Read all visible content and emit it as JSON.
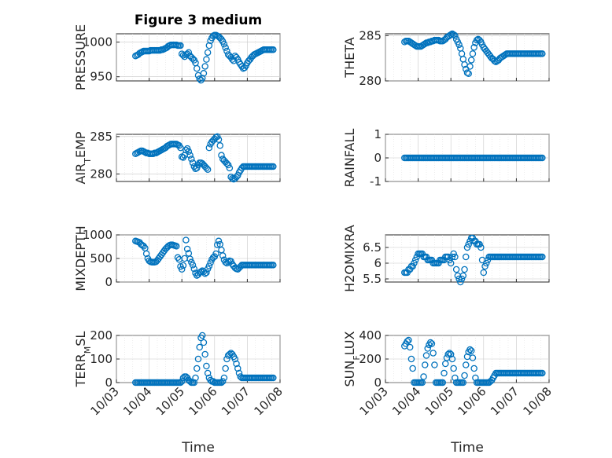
{
  "chart_data": [
    {
      "type": "scatter",
      "title": "Figure 3 medium",
      "ylabel": "PRESSURE",
      "ylim": [
        944,
        1012
      ],
      "yticks": [
        "950",
        "1000"
      ],
      "yticks_values": [
        950,
        1000
      ],
      "x": [
        "10/03 14:00",
        "10/03 15:00",
        "10/03 16:00",
        "10/03 17:00",
        "10/03 18:00",
        "10/03 19:00",
        "10/03 20:00",
        "10/03 21:00",
        "10/03 22:00",
        "10/03 23:00",
        "10/04 00:00",
        "10/04 01:00",
        "10/04 02:00",
        "10/04 03:00",
        "10/04 04:00",
        "10/04 05:00",
        "10/04 06:00",
        "10/04 07:00",
        "10/04 08:00",
        "10/04 09:00",
        "10/04 10:00",
        "10/04 11:00",
        "10/04 12:00",
        "10/04 13:00",
        "10/04 14:00",
        "10/04 15:00",
        "10/04 16:00",
        "10/04 17:00",
        "10/04 18:00",
        "10/04 19:00",
        "10/04 20:00",
        "10/04 21:00",
        "10/04 22:00",
        "10/04 23:00",
        "10/05 00:00",
        "10/05 01:00",
        "10/05 02:00",
        "10/05 03:00",
        "10/05 04:00",
        "10/05 05:00",
        "10/05 06:00",
        "10/05 07:00",
        "10/05 08:00",
        "10/05 09:00",
        "10/05 10:00",
        "10/05 11:00",
        "10/05 12:00",
        "10/05 13:00",
        "10/05 14:00",
        "10/05 15:00",
        "10/05 16:00",
        "10/05 17:00",
        "10/05 18:00",
        "10/05 19:00",
        "10/05 20:00",
        "10/05 21:00",
        "10/05 22:00",
        "10/05 23:00",
        "10/06 00:00",
        "10/06 01:00",
        "10/06 02:00",
        "10/06 03:00",
        "10/06 04:00",
        "10/06 05:00",
        "10/06 06:00",
        "10/06 07:00",
        "10/06 08:00",
        "10/06 09:00",
        "10/06 10:00",
        "10/06 11:00",
        "10/06 12:00",
        "10/06 13:00",
        "10/06 14:00",
        "10/06 15:00",
        "10/06 16:00",
        "10/06 17:00",
        "10/06 18:00",
        "10/06 19:00",
        "10/06 20:00",
        "10/06 21:00",
        "10/06 22:00",
        "10/06 23:00",
        "10/07 00:00",
        "10/07 01:00",
        "10/07 02:00",
        "10/07 03:00",
        "10/07 04:00",
        "10/07 05:00",
        "10/07 06:00",
        "10/07 07:00",
        "10/07 08:00",
        "10/07 09:00",
        "10/07 10:00",
        "10/07 11:00",
        "10/07 12:00",
        "10/07 13:00",
        "10/07 14:00",
        "10/07 15:00",
        "10/07 16:00",
        "10/07 17:00",
        "10/07 18:00",
        "10/07 19:00"
      ],
      "series": [
        {
          "values": [
            980,
            981,
            982,
            984,
            985,
            986,
            987,
            987,
            987,
            987,
            987,
            988,
            988,
            988,
            988,
            988,
            988,
            988,
            988,
            989,
            989,
            990,
            991,
            992,
            994,
            995,
            996,
            996,
            996,
            996,
            996,
            995,
            995,
            995,
            983,
            981,
            979,
            982,
            983,
            985,
            980,
            978,
            976,
            974,
            970,
            962,
            952,
            947,
            945,
            948,
            955,
            965,
            975,
            985,
            995,
            1002,
            1006,
            1009,
            1010,
            1010,
            1009,
            1008,
            1006,
            1004,
            1001,
            997,
            992,
            987,
            982,
            980,
            978,
            975,
            973,
            980,
            978,
            975,
            971,
            968,
            965,
            962,
            963,
            966,
            970,
            973,
            975,
            978,
            980,
            982,
            983,
            984,
            985,
            986,
            987,
            988,
            989,
            989,
            989,
            989,
            989,
            989,
            989,
            989
          ]
        }
      ]
    },
    {
      "type": "scatter",
      "ylabel": "THETA",
      "ylim": [
        280,
        285.2
      ],
      "yticks": [
        "280",
        "285"
      ],
      "yticks_values": [
        280,
        285
      ],
      "series": [
        {
          "values": [
            284.3,
            284.4,
            284.4,
            284.4,
            284.3,
            284.2,
            284.1,
            284.0,
            283.9,
            283.8,
            283.8,
            283.8,
            283.8,
            283.9,
            284.0,
            284.1,
            284.2,
            284.2,
            284.3,
            284.3,
            284.4,
            284.4,
            284.5,
            284.5,
            284.5,
            284.5,
            284.4,
            284.4,
            284.4,
            284.5,
            284.6,
            284.8,
            284.9,
            285.0,
            285.1,
            285.2,
            285.1,
            285.0,
            284.6,
            284.3,
            284.0,
            283.6,
            283.0,
            282.4,
            281.8,
            281.3,
            280.9,
            280.8,
            281.6,
            282.3,
            283.0,
            283.7,
            284.2,
            284.5,
            284.6,
            284.5,
            284.3,
            284.0,
            283.7,
            283.5,
            283.3,
            283.1,
            282.9,
            282.7,
            282.5,
            282.4,
            282.2,
            282.1,
            282.2,
            282.3,
            282.5,
            282.6,
            282.7,
            282.8,
            282.9,
            283.0,
            283.0,
            283.0,
            283.0,
            283.0,
            283.0,
            283.0,
            283.0,
            283.0,
            283.0,
            283.0,
            283.0,
            283.0,
            283.0,
            283.0,
            283.0,
            283.0,
            283.0,
            283.0,
            283.0,
            283.0,
            283.0,
            283.0,
            283.0,
            283.0,
            283.0,
            283.0
          ]
        }
      ]
    },
    {
      "type": "scatter",
      "ylabel": "AIR_TEMP",
      "ylim": [
        279,
        285.3
      ],
      "yticks": [
        "280",
        "285"
      ],
      "yticks_values": [
        280,
        285
      ],
      "series": [
        {
          "values": [
            282.7,
            282.8,
            282.9,
            283.0,
            283.1,
            283.1,
            283.0,
            282.9,
            282.8,
            282.8,
            282.7,
            282.7,
            282.7,
            282.7,
            282.8,
            282.8,
            282.9,
            283.0,
            283.1,
            283.2,
            283.3,
            283.4,
            283.5,
            283.7,
            283.8,
            283.9,
            284.0,
            284.0,
            284.0,
            284.0,
            284.0,
            283.9,
            283.8,
            283.5,
            282.3,
            282.2,
            282.5,
            283.2,
            283.4,
            283.0,
            282.5,
            282.0,
            281.5,
            281.0,
            280.7,
            280.8,
            281.2,
            281.5,
            281.5,
            281.4,
            281.2,
            281.0,
            280.8,
            280.6,
            283.5,
            284.0,
            284.3,
            284.5,
            284.7,
            284.9,
            285.0,
            284.6,
            283.8,
            282.5,
            282.0,
            281.8,
            281.6,
            281.4,
            281.2,
            280.8,
            279.6,
            279.4,
            279.3,
            279.4,
            279.6,
            279.8,
            280.2,
            280.5,
            280.8,
            281.0,
            281.0,
            281.0,
            281.0,
            281.0,
            281.0,
            281.0,
            281.0,
            281.0,
            281.0,
            281.0,
            281.0,
            281.0,
            281.0,
            281.0,
            281.0,
            281.0,
            281.0,
            281.0,
            281.0,
            281.0,
            281.0,
            281.0
          ]
        }
      ]
    },
    {
      "type": "scatter",
      "ylabel": "RAINFALL",
      "ylim": [
        -1,
        1
      ],
      "yticks": [
        "-1",
        "0",
        "1"
      ],
      "yticks_values": [
        -1,
        0,
        1
      ],
      "series": [
        {
          "values": [
            0
          ]
        }
      ]
    },
    {
      "type": "scatter",
      "ylabel": "MIXDEPTH",
      "ylim": [
        0,
        1000
      ],
      "yticks": [
        "0",
        "500",
        "1000"
      ],
      "yticks_values": [
        0,
        500,
        1000
      ],
      "series": [
        {
          "values": [
            870,
            860,
            850,
            840,
            800,
            780,
            760,
            720,
            600,
            500,
            450,
            430,
            420,
            420,
            420,
            430,
            460,
            500,
            540,
            580,
            620,
            660,
            700,
            730,
            760,
            780,
            790,
            790,
            780,
            770,
            760,
            520,
            480,
            330,
            270,
            350,
            500,
            890,
            700,
            610,
            490,
            420,
            360,
            280,
            190,
            140,
            160,
            200,
            220,
            240,
            220,
            180,
            200,
            280,
            340,
            410,
            480,
            520,
            540,
            600,
            790,
            870,
            800,
            680,
            560,
            470,
            420,
            400,
            430,
            450,
            440,
            380,
            340,
            300,
            280,
            270,
            300,
            330,
            360,
            360,
            360,
            360,
            360,
            360,
            360,
            360,
            360,
            360,
            360,
            360,
            360,
            360,
            360,
            360,
            360,
            360,
            360,
            360,
            360,
            360,
            360,
            360
          ]
        }
      ]
    },
    {
      "type": "scatter",
      "ylabel": "H2OMIXRA",
      "ylim": [
        5.4,
        6.9
      ],
      "yticks": [
        "5.5",
        "6",
        "6.5"
      ],
      "yticks_values": [
        5.5,
        6,
        6.5
      ],
      "series": [
        {
          "values": [
            5.7,
            5.7,
            5.7,
            5.8,
            5.8,
            5.9,
            5.9,
            6.0,
            6.1,
            6.2,
            6.3,
            6.3,
            6.3,
            6.3,
            6.2,
            6.2,
            6.2,
            6.1,
            6.1,
            6.1,
            6.1,
            6.0,
            6.0,
            6.0,
            6.0,
            6.0,
            6.1,
            6.1,
            6.1,
            6.1,
            6.2,
            6.2,
            6.2,
            6.1,
            6.0,
            6.2,
            6.3,
            6.2,
            5.8,
            5.6,
            5.5,
            5.4,
            5.5,
            5.6,
            5.8,
            6.2,
            6.5,
            6.6,
            6.7,
            6.8,
            6.8,
            6.7,
            6.7,
            6.6,
            6.6,
            6.6,
            6.5,
            6.1,
            5.7,
            5.9,
            6.0,
            6.1,
            6.2,
            6.2,
            6.2,
            6.2,
            6.2,
            6.2,
            6.2,
            6.2,
            6.2,
            6.2,
            6.2,
            6.2,
            6.2,
            6.2,
            6.2,
            6.2,
            6.2,
            6.2,
            6.2,
            6.2,
            6.2,
            6.2,
            6.2,
            6.2,
            6.2,
            6.2,
            6.2,
            6.2,
            6.2,
            6.2,
            6.2,
            6.2,
            6.2,
            6.2,
            6.2,
            6.2,
            6.2,
            6.2,
            6.2,
            6.2
          ]
        }
      ]
    },
    {
      "type": "scatter",
      "ylabel": "TERR_MSL",
      "ylim": [
        0,
        200
      ],
      "yticks": [
        "0",
        "100",
        "200"
      ],
      "yticks_values": [
        0,
        100,
        200
      ],
      "series": [
        {
          "values": [
            0,
            0,
            0,
            0,
            0,
            0,
            0,
            0,
            0,
            0,
            0,
            0,
            0,
            0,
            0,
            0,
            0,
            0,
            0,
            0,
            0,
            0,
            0,
            0,
            0,
            0,
            0,
            0,
            0,
            0,
            0,
            0,
            0,
            0,
            5,
            20,
            25,
            25,
            20,
            10,
            5,
            0,
            0,
            0,
            20,
            60,
            100,
            150,
            190,
            200,
            170,
            120,
            70,
            40,
            20,
            10,
            5,
            5,
            0,
            0,
            0,
            0,
            0,
            0,
            5,
            20,
            60,
            100,
            115,
            120,
            125,
            120,
            110,
            100,
            80,
            60,
            40,
            25,
            20,
            20,
            20,
            20,
            20,
            20,
            20,
            20,
            20,
            20,
            20,
            20,
            20,
            20,
            20,
            20,
            20,
            20,
            20,
            20,
            20,
            20,
            20,
            20
          ]
        }
      ]
    },
    {
      "type": "scatter",
      "ylabel": "SUN_FLUX",
      "ylim": [
        0,
        400
      ],
      "yticks": [
        "0",
        "200",
        "400"
      ],
      "yticks_values": [
        0,
        200,
        400
      ],
      "series": [
        {
          "values": [
            310,
            330,
            350,
            360,
            300,
            200,
            120,
            0,
            0,
            0,
            0,
            0,
            0,
            0,
            50,
            150,
            230,
            290,
            320,
            340,
            330,
            250,
            150,
            0,
            0,
            0,
            0,
            0,
            0,
            80,
            160,
            210,
            240,
            250,
            240,
            200,
            120,
            40,
            0,
            0,
            0,
            0,
            0,
            0,
            60,
            150,
            220,
            260,
            280,
            270,
            210,
            120,
            40,
            0,
            0,
            0,
            0,
            0,
            0,
            0,
            0,
            0,
            0,
            10,
            20,
            40,
            60,
            80,
            80,
            80,
            80,
            80,
            80,
            80,
            80,
            80,
            80,
            80,
            80,
            80,
            80,
            80,
            80,
            80,
            80,
            80,
            80,
            80,
            80,
            80,
            80,
            80,
            80,
            80,
            80,
            80,
            80,
            80,
            80,
            80,
            80,
            80
          ]
        }
      ]
    }
  ],
  "xaxis": {
    "label": "Time",
    "ticks": [
      "10/03",
      "10/04",
      "10/05",
      "10/06",
      "10/07",
      "10/08"
    ],
    "range": [
      "10/03 00:00",
      "10/08 00:00"
    ]
  },
  "style": {
    "marker_color": "#0072bd",
    "axes_color": "#262626"
  }
}
